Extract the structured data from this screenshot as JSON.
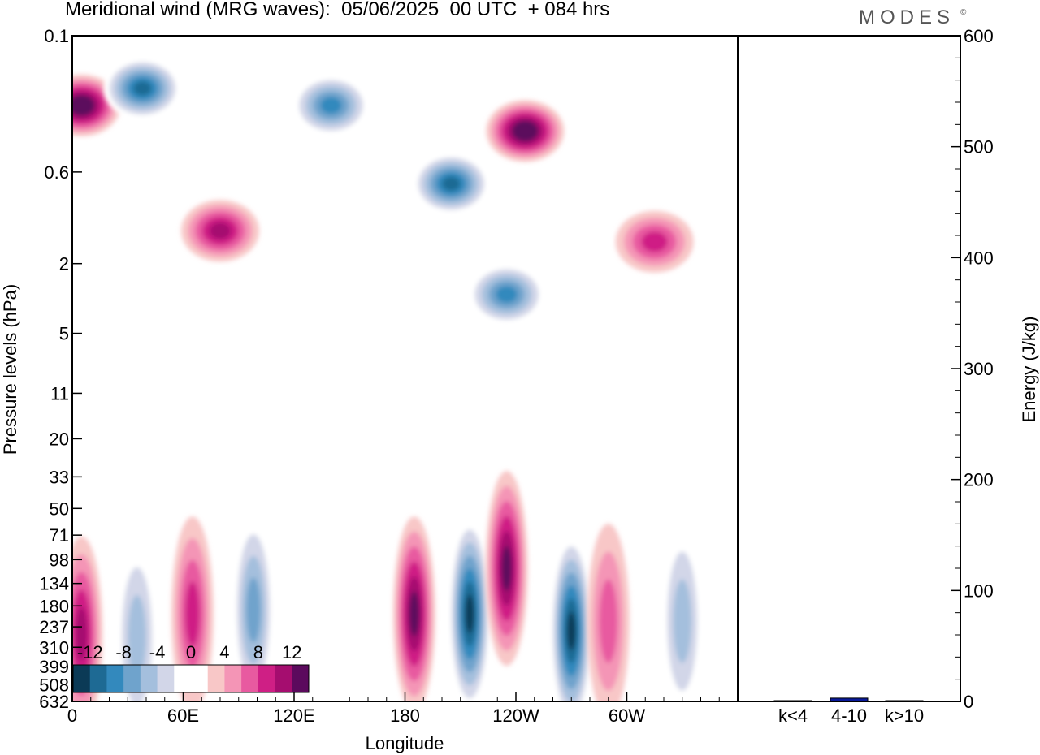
{
  "title": "Meridional wind (MRG waves):  05/06/2025  00 UTC  + 084 hrs",
  "logo": "MODES",
  "logo_mark": "©",
  "chart_data": [
    {
      "type": "heatmap",
      "title": "Meridional wind (MRG waves):  05/06/2025  00 UTC  + 084 hrs",
      "xlabel": "Longitude",
      "ylabel": "Pressure levels (hPa)",
      "x_ticks": [
        "0",
        "60E",
        "120E",
        "180",
        "120W",
        "60W"
      ],
      "x_tick_degrees": [
        0,
        60,
        120,
        180,
        240,
        300
      ],
      "xlim": [
        0,
        360
      ],
      "y_ticks": [
        "0.1",
        "0.6",
        "2",
        "5",
        "11",
        "20",
        "33",
        "50",
        "71",
        "98",
        "134",
        "180",
        "237",
        "310",
        "399",
        "508",
        "632"
      ],
      "y_scale": "log, inverted (pressure decreasing upward)",
      "colorbar": {
        "labels": [
          "-12",
          "-8",
          "-4",
          "0",
          "4",
          "8",
          "12"
        ],
        "levels": [
          -14,
          -12,
          -10,
          -8,
          -6,
          -4,
          -2,
          0,
          2,
          4,
          6,
          8,
          10,
          12,
          14
        ],
        "colors": [
          "#0b3a56",
          "#1e6a94",
          "#3389bd",
          "#6fa3cc",
          "#a4bfdd",
          "#d2d6e8",
          "#ffffff",
          "#ffffff",
          "#f8c7c7",
          "#f495b6",
          "#e85aa0",
          "#cf1f85",
          "#a50d6f",
          "#5b0a5d"
        ],
        "placement": "bottom-left, inside plot"
      },
      "features": [
        {
          "lon": 5,
          "p": 0.25,
          "sign": "positive",
          "magnitude": 14
        },
        {
          "lon": 38,
          "p": 0.2,
          "sign": "negative",
          "magnitude": 12
        },
        {
          "lon": 80,
          "p": 1.3,
          "sign": "positive",
          "magnitude": 10
        },
        {
          "lon": 140,
          "p": 0.25,
          "sign": "negative",
          "magnitude": 10
        },
        {
          "lon": 205,
          "p": 0.7,
          "sign": "negative",
          "magnitude": 12
        },
        {
          "lon": 235,
          "p": 3.0,
          "sign": "negative",
          "magnitude": 10
        },
        {
          "lon": 245,
          "p": 0.35,
          "sign": "positive",
          "magnitude": 14
        },
        {
          "lon": 315,
          "p": 1.5,
          "sign": "positive",
          "magnitude": 8
        },
        {
          "lon": 5,
          "p": 260,
          "sign": "positive",
          "magnitude": 10
        },
        {
          "lon": 35,
          "p": 270,
          "sign": "negative",
          "magnitude": 6
        },
        {
          "lon": 65,
          "p": 200,
          "sign": "positive",
          "magnitude": 8
        },
        {
          "lon": 98,
          "p": 190,
          "sign": "negative",
          "magnitude": 8
        },
        {
          "lon": 185,
          "p": 200,
          "sign": "positive",
          "magnitude": 12
        },
        {
          "lon": 215,
          "p": 200,
          "sign": "negative",
          "magnitude": 14
        },
        {
          "lon": 235,
          "p": 110,
          "sign": "positive",
          "magnitude": 12
        },
        {
          "lon": 270,
          "p": 250,
          "sign": "negative",
          "magnitude": 14
        },
        {
          "lon": 290,
          "p": 220,
          "sign": "positive",
          "magnitude": 6
        },
        {
          "lon": 330,
          "p": 220,
          "sign": "negative",
          "magnitude": 6
        }
      ]
    },
    {
      "type": "bar",
      "categories": [
        "k<4",
        "4-10",
        "k>10"
      ],
      "values": [
        0,
        3,
        0
      ],
      "ylabel": "Energy (J/kg)",
      "ylim": [
        0,
        600
      ],
      "y_ticks": [
        "0",
        "100",
        "200",
        "300",
        "400",
        "500",
        "600"
      ],
      "bar_color": "#0a1a9a"
    }
  ]
}
